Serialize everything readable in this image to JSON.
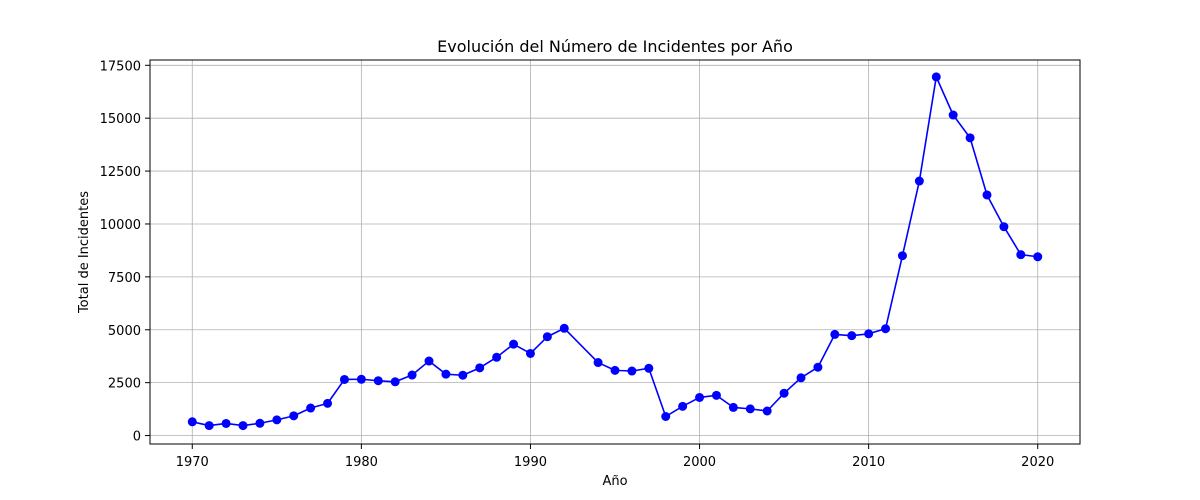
{
  "chart_data": {
    "type": "line",
    "title": "Evolución del Número de Incidentes por Año",
    "xlabel": "Año",
    "ylabel": "Total de Incidentes",
    "xlim": [
      1967.5,
      2022.5
    ],
    "ylim": [
      -400,
      17750
    ],
    "xticks": [
      1970,
      1980,
      1990,
      2000,
      2010,
      2020
    ],
    "yticks": [
      0,
      2500,
      5000,
      7500,
      10000,
      12500,
      15000,
      17500
    ],
    "grid": true,
    "line_color": "#0000ff",
    "marker": "circle",
    "series": [
      {
        "x": [
          1970,
          1971,
          1972,
          1973,
          1974,
          1975,
          1976,
          1977,
          1978,
          1979,
          1980,
          1981,
          1982,
          1983,
          1984,
          1985,
          1986,
          1987,
          1988,
          1989,
          1990,
          1991,
          1992,
          1994,
          1995,
          1996,
          1997,
          1998,
          1999,
          2000,
          2001,
          2002,
          2003,
          2004,
          2005,
          2006,
          2007,
          2008,
          2009,
          2010,
          2011,
          2012,
          2013,
          2014,
          2015,
          2016,
          2017,
          2018,
          2019,
          2020
        ],
        "y": [
          650,
          470,
          570,
          470,
          580,
          740,
          930,
          1300,
          1520,
          2650,
          2660,
          2590,
          2540,
          2860,
          3520,
          2900,
          2850,
          3200,
          3700,
          4320,
          3880,
          4670,
          5070,
          3450,
          3080,
          3050,
          3180,
          900,
          1380,
          1800,
          1900,
          1330,
          1260,
          1160,
          2000,
          2730,
          3230,
          4780,
          4720,
          4810,
          5050,
          8500,
          12030,
          16950,
          15150,
          14070,
          11370,
          9870,
          8550,
          8450
        ]
      }
    ]
  }
}
